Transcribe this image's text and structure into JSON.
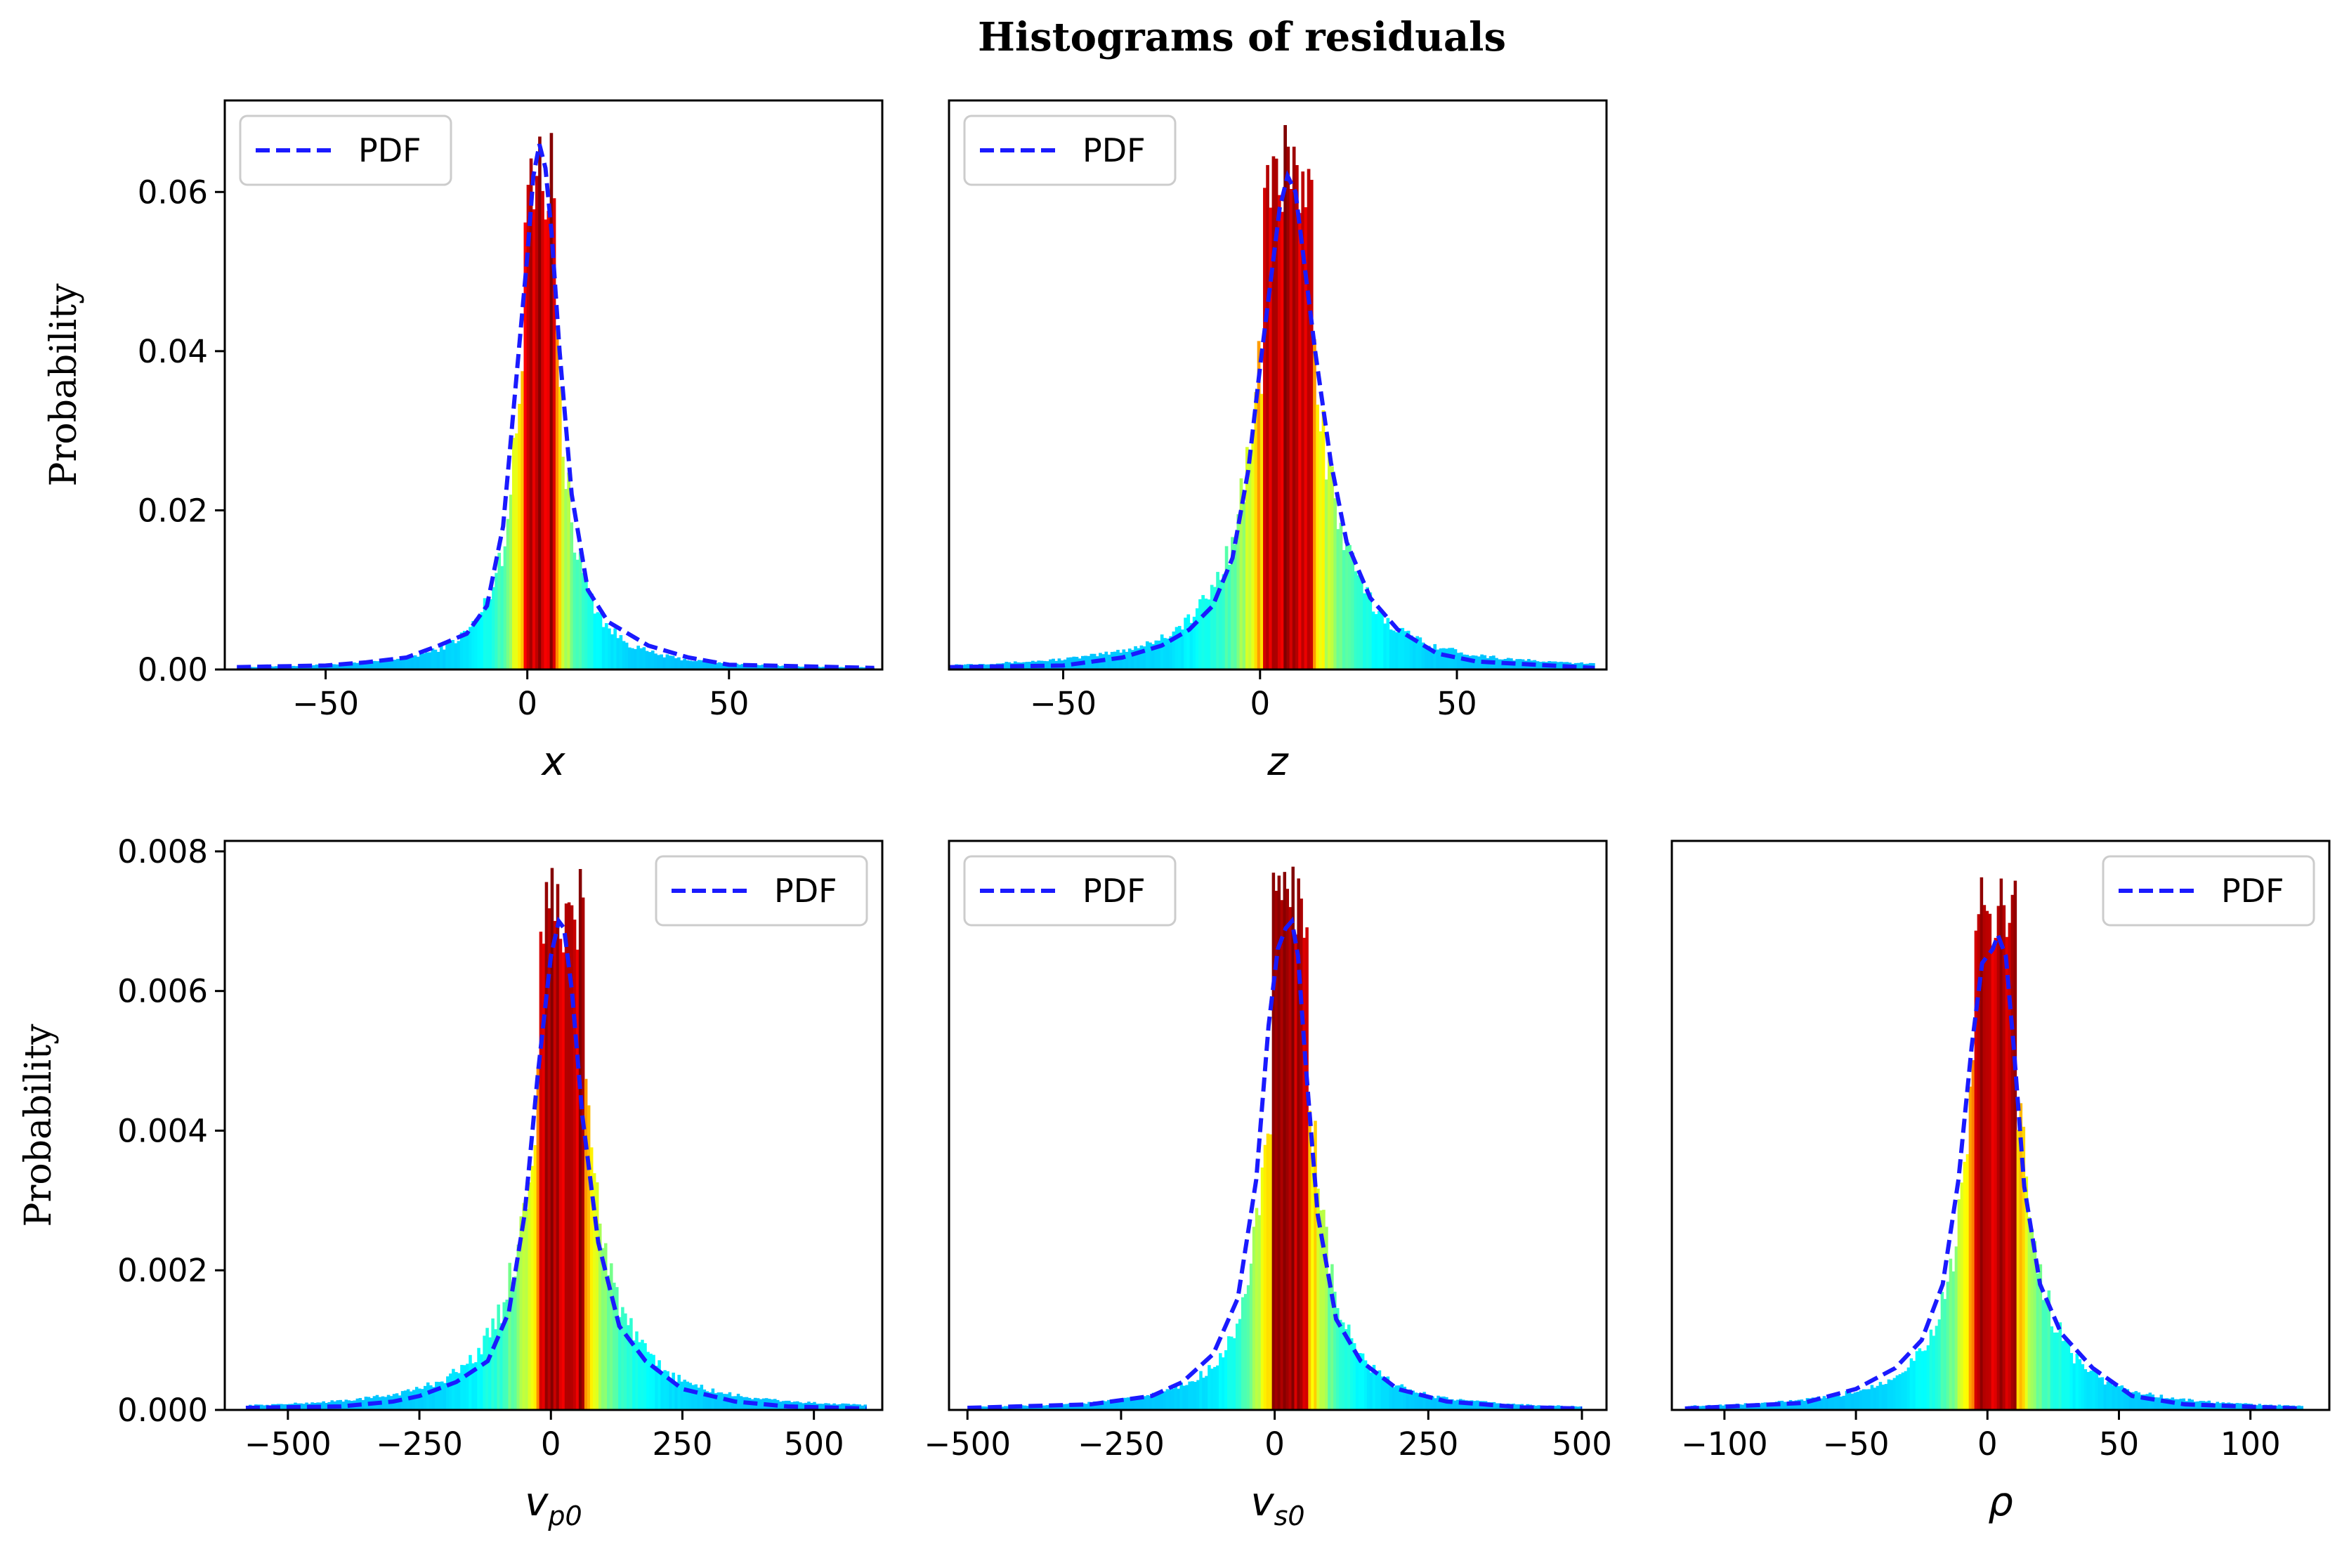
{
  "figure": {
    "title": "Histograms of residuals"
  },
  "colors": {
    "pdf_line": "#1a1aff",
    "bar_colormap": "jet (center dark red to tails green)"
  },
  "chart_data": [
    {
      "type": "bar",
      "xlabel_main": "x",
      "xlabel_sub": "",
      "ylabel": "Probability",
      "xlim": [
        -75,
        88
      ],
      "ylim": [
        0,
        0.0715
      ],
      "xticks": [
        -50,
        0,
        50
      ],
      "xtick_labels": [
        "−50",
        "0",
        "50"
      ],
      "yticks": [
        0,
        0.02,
        0.04,
        0.06
      ],
      "ytick_labels": [
        "0.00",
        "0.02",
        "0.04",
        "0.06"
      ],
      "legend": {
        "label": "PDF",
        "position": "upper-left"
      },
      "hist": {
        "center": 3,
        "peak": 0.068,
        "width": 5,
        "min": -72,
        "max": 86
      },
      "pdf": {
        "x": [
          -72,
          -50,
          -40,
          -30,
          -22,
          -15,
          -10,
          -6,
          -3,
          0,
          1.5,
          3,
          4.5,
          6,
          8,
          11,
          15,
          20,
          30,
          40,
          50,
          86
        ],
        "y": [
          0.0003,
          0.0005,
          0.0009,
          0.0015,
          0.003,
          0.0045,
          0.008,
          0.018,
          0.035,
          0.052,
          0.062,
          0.066,
          0.063,
          0.055,
          0.04,
          0.022,
          0.01,
          0.006,
          0.003,
          0.0015,
          0.0006,
          0.0002
        ]
      }
    },
    {
      "type": "bar",
      "xlabel_main": "z",
      "xlabel_sub": "",
      "ylabel": "",
      "xlim": [
        -79,
        88
      ],
      "ylim": [
        0,
        0.0715
      ],
      "xticks": [
        -50,
        0,
        50
      ],
      "xtick_labels": [
        "−50",
        "0",
        "50"
      ],
      "yticks": [],
      "ytick_labels": [],
      "legend": {
        "label": "PDF",
        "position": "upper-left"
      },
      "hist": {
        "center": 7,
        "peak": 0.0685,
        "width": 8,
        "min": -79,
        "max": 85
      },
      "pdf": {
        "x": [
          -79,
          -50,
          -35,
          -25,
          -18,
          -12,
          -7,
          -3,
          0,
          3,
          5,
          7,
          9,
          11,
          14,
          18,
          22,
          28,
          35,
          45,
          55,
          85
        ],
        "y": [
          0.0003,
          0.0005,
          0.0015,
          0.003,
          0.005,
          0.008,
          0.014,
          0.025,
          0.038,
          0.05,
          0.058,
          0.062,
          0.06,
          0.052,
          0.04,
          0.026,
          0.016,
          0.009,
          0.005,
          0.002,
          0.001,
          0.0002
        ]
      }
    },
    {
      "type": "bar",
      "xlabel_main": "v",
      "xlabel_sub": "p0",
      "ylabel": "Probability",
      "xlim": [
        -620,
        630
      ],
      "ylim": [
        0,
        0.00815
      ],
      "xticks": [
        -500,
        -250,
        0,
        250,
        500
      ],
      "xtick_labels": [
        "−500",
        "−250",
        "0",
        "250",
        "500"
      ],
      "yticks": [
        0,
        0.002,
        0.004,
        0.006,
        0.008
      ],
      "ytick_labels": [
        "0.000",
        "0.002",
        "0.004",
        "0.006",
        "0.008"
      ],
      "legend": {
        "label": "PDF",
        "position": "upper-right"
      },
      "hist": {
        "center": 20,
        "peak": 0.0078,
        "width": 55,
        "min": -580,
        "max": 600
      },
      "pdf": {
        "x": [
          -580,
          -400,
          -300,
          -250,
          -180,
          -120,
          -80,
          -50,
          -25,
          0,
          15,
          25,
          40,
          60,
          90,
          130,
          180,
          250,
          350,
          450,
          600
        ],
        "y": [
          3e-05,
          5e-05,
          0.00012,
          0.0002,
          0.0004,
          0.0007,
          0.0014,
          0.0028,
          0.0048,
          0.0065,
          0.007,
          0.0069,
          0.006,
          0.0042,
          0.0024,
          0.0012,
          0.0007,
          0.0003,
          0.00012,
          5e-05,
          2e-05
        ]
      }
    },
    {
      "type": "bar",
      "xlabel_main": "v",
      "xlabel_sub": "s0",
      "ylabel": "",
      "xlim": [
        -530,
        540
      ],
      "ylim": [
        0,
        0.00815
      ],
      "xticks": [
        -500,
        -250,
        0,
        250,
        500
      ],
      "xtick_labels": [
        "−500",
        "−250",
        "0",
        "250",
        "500"
      ],
      "yticks": [],
      "ytick_labels": [],
      "legend": {
        "label": "PDF",
        "position": "upper-left"
      },
      "hist": {
        "center": 25,
        "peak": 0.0078,
        "width": 38,
        "min": -500,
        "max": 500
      },
      "pdf": {
        "x": [
          -500,
          -300,
          -200,
          -150,
          -100,
          -60,
          -30,
          -10,
          5,
          18,
          28,
          38,
          50,
          70,
          100,
          140,
          200,
          280,
          400,
          500
        ],
        "y": [
          3e-05,
          8e-05,
          0.0002,
          0.0004,
          0.0008,
          0.0016,
          0.0033,
          0.0055,
          0.0066,
          0.0069,
          0.007,
          0.0065,
          0.005,
          0.0028,
          0.0013,
          0.0007,
          0.0003,
          0.00012,
          4e-05,
          2e-05
        ]
      }
    },
    {
      "type": "bar",
      "xlabel_main": "ρ",
      "xlabel_sub": "",
      "ylabel": "",
      "xlim": [
        -120,
        130
      ],
      "ylim": [
        0,
        0.00815
      ],
      "xticks": [
        -100,
        -50,
        0,
        50,
        100
      ],
      "xtick_labels": [
        "−100",
        "−50",
        "0",
        "50",
        "100"
      ],
      "yticks": [],
      "ytick_labels": [],
      "legend": {
        "label": "PDF",
        "position": "upper-right"
      },
      "hist": {
        "center": 3,
        "peak": 0.0078,
        "width": 10,
        "min": -115,
        "max": 120
      },
      "pdf": {
        "x": [
          -115,
          -70,
          -50,
          -35,
          -25,
          -17,
          -11,
          -6,
          -2,
          2,
          4,
          7,
          10,
          14,
          20,
          28,
          40,
          55,
          75,
          120
        ],
        "y": [
          2e-05,
          0.0001,
          0.0003,
          0.0006,
          0.001,
          0.0018,
          0.0033,
          0.0052,
          0.0064,
          0.0066,
          0.0068,
          0.0065,
          0.0052,
          0.0032,
          0.0018,
          0.0011,
          0.0006,
          0.0002,
          8e-05,
          2e-05
        ]
      }
    }
  ]
}
